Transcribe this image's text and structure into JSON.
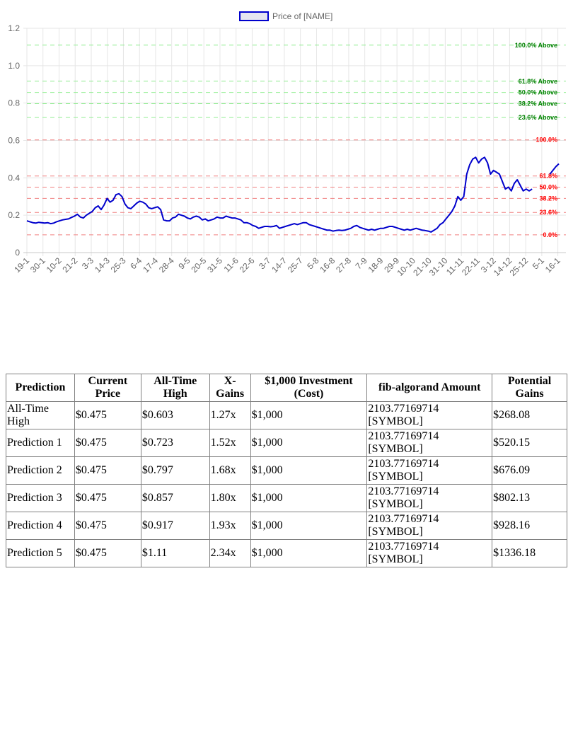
{
  "chart_data": {
    "type": "line",
    "legend": "Price of [NAME]",
    "series": [
      {
        "name": "Price of [NAME]",
        "color": "#0000cc",
        "values": [
          0.17,
          0.165,
          0.16,
          0.158,
          0.162,
          0.16,
          0.158,
          0.16,
          0.155,
          0.158,
          0.165,
          0.17,
          0.175,
          0.178,
          0.18,
          0.188,
          0.195,
          0.205,
          0.19,
          0.185,
          0.2,
          0.21,
          0.22,
          0.24,
          0.25,
          0.23,
          0.255,
          0.29,
          0.27,
          0.28,
          0.31,
          0.315,
          0.3,
          0.26,
          0.24,
          0.235,
          0.25,
          0.265,
          0.275,
          0.27,
          0.26,
          0.24,
          0.235,
          0.24,
          0.245,
          0.23,
          0.175,
          0.17,
          0.17,
          0.185,
          0.19,
          0.205,
          0.2,
          0.195,
          0.185,
          0.18,
          0.19,
          0.195,
          0.19,
          0.175,
          0.18,
          0.17,
          0.175,
          0.18,
          0.19,
          0.185,
          0.185,
          0.195,
          0.19,
          0.185,
          0.185,
          0.18,
          0.175,
          0.16,
          0.16,
          0.155,
          0.145,
          0.14,
          0.13,
          0.135,
          0.14,
          0.14,
          0.138,
          0.14,
          0.145,
          0.13,
          0.135,
          0.14,
          0.145,
          0.15,
          0.155,
          0.15,
          0.155,
          0.16,
          0.16,
          0.15,
          0.145,
          0.14,
          0.135,
          0.13,
          0.125,
          0.12,
          0.12,
          0.115,
          0.118,
          0.12,
          0.118,
          0.12,
          0.125,
          0.13,
          0.14,
          0.145,
          0.135,
          0.13,
          0.125,
          0.12,
          0.125,
          0.12,
          0.125,
          0.13,
          0.13,
          0.135,
          0.14,
          0.14,
          0.135,
          0.13,
          0.125,
          0.12,
          0.125,
          0.12,
          0.125,
          0.13,
          0.125,
          0.12,
          0.118,
          0.115,
          0.11,
          0.12,
          0.13,
          0.15,
          0.16,
          0.18,
          0.2,
          0.22,
          0.25,
          0.3,
          0.28,
          0.3,
          0.42,
          0.47,
          0.5,
          0.51,
          0.48,
          0.5,
          0.51,
          0.48,
          0.42,
          0.44,
          0.43,
          0.42,
          0.38,
          0.34,
          0.35,
          0.33,
          0.37,
          0.39,
          0.36,
          0.33,
          0.34,
          0.33,
          0.34,
          0.34,
          0.345,
          0.36,
          0.38,
          0.4,
          0.42,
          0.44,
          0.46,
          0.475
        ],
        "visible_until_index": 170
      }
    ],
    "x_tick_labels": [
      "19-1",
      "30-1",
      "10-2",
      "21-2",
      "3-3",
      "14-3",
      "25-3",
      "6-4",
      "17-4",
      "28-4",
      "9-5",
      "20-5",
      "31-5",
      "11-6",
      "22-6",
      "3-7",
      "14-7",
      "25-7",
      "5-8",
      "16-8",
      "27-8",
      "7-9",
      "18-9",
      "29-9",
      "10-10",
      "21-10",
      "31-10",
      "11-11",
      "22-11",
      "3-12",
      "14-12",
      "25-12",
      "5-1",
      "16-1"
    ],
    "y_ticks": [
      0,
      0.2,
      0.4,
      0.6,
      0.8,
      1.0,
      1.2
    ],
    "y_tick_labels": [
      "0",
      "0.2",
      "0.4",
      "0.6",
      "0.8",
      "1.0",
      "1.2"
    ],
    "ylim": [
      0,
      1.2
    ],
    "grid": true,
    "legend_position": "top-center",
    "fib_levels": [
      {
        "label": "100.0% Above",
        "value": 1.11,
        "color": "#008000",
        "line_color": "#90ee90"
      },
      {
        "label": "61.8% Above",
        "value": 0.917,
        "color": "#008000",
        "line_color": "#90ee90"
      },
      {
        "label": "50.0% Above",
        "value": 0.857,
        "color": "#008000",
        "line_color": "#90ee90"
      },
      {
        "label": "38.2% Above",
        "value": 0.797,
        "color": "#008000",
        "line_color": "#90ee90"
      },
      {
        "label": "23.6% Above",
        "value": 0.723,
        "color": "#008000",
        "line_color": "#90ee90"
      },
      {
        "label": "100.0%",
        "value": 0.603,
        "color": "#ff0000",
        "line_color": "#f08080"
      },
      {
        "label": "61.8%",
        "value": 0.41,
        "color": "#ff0000",
        "line_color": "#f08080"
      },
      {
        "label": "50.0%",
        "value": 0.35,
        "color": "#ff0000",
        "line_color": "#f08080"
      },
      {
        "label": "38.2%",
        "value": 0.29,
        "color": "#ff0000",
        "line_color": "#f08080"
      },
      {
        "label": "23.6%",
        "value": 0.215,
        "color": "#ff0000",
        "line_color": "#f08080"
      },
      {
        "label": "0.0%",
        "value": 0.095,
        "color": "#ff0000",
        "line_color": "#f08080"
      }
    ]
  },
  "table": {
    "headers": [
      "Prediction",
      "Current Price",
      "All-Time High",
      "X-Gains",
      "$1,000 Investment (Cost)",
      "fib-algorand Amount",
      "Potential Gains"
    ],
    "rows": [
      [
        "All-Time High",
        "$0.475",
        "$0.603",
        "1.27x",
        "$1,000",
        "2103.77169714 [SYMBOL]",
        "$268.08"
      ],
      [
        "Prediction 1",
        "$0.475",
        "$0.723",
        "1.52x",
        "$1,000",
        "2103.77169714 [SYMBOL]",
        "$520.15"
      ],
      [
        "Prediction 2",
        "$0.475",
        "$0.797",
        "1.68x",
        "$1,000",
        "2103.77169714 [SYMBOL]",
        "$676.09"
      ],
      [
        "Prediction 3",
        "$0.475",
        "$0.857",
        "1.80x",
        "$1,000",
        "2103.77169714 [SYMBOL]",
        "$802.13"
      ],
      [
        "Prediction 4",
        "$0.475",
        "$0.917",
        "1.93x",
        "$1,000",
        "2103.77169714 [SYMBOL]",
        "$928.16"
      ],
      [
        "Prediction 5",
        "$0.475",
        "$1.11",
        "2.34x",
        "$1,000",
        "2103.77169714 [SYMBOL]",
        "$1336.18"
      ]
    ]
  }
}
